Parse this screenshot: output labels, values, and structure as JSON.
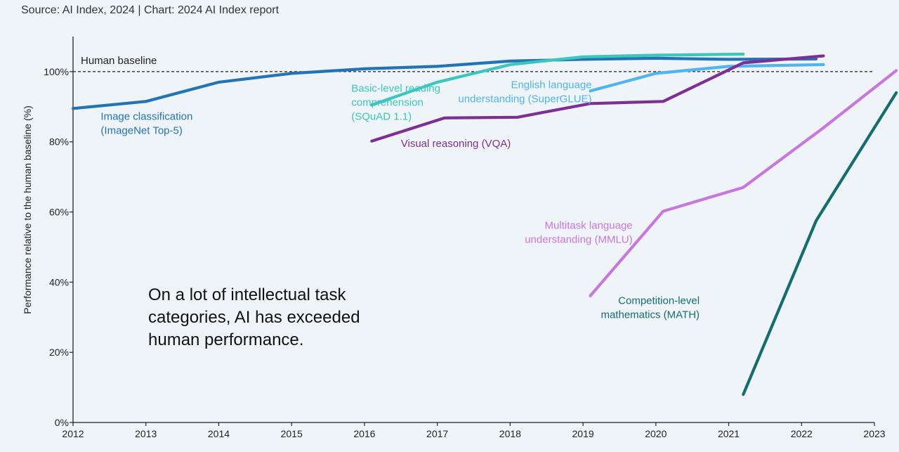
{
  "source": "Source: AI Index, 2024 | Chart: 2024 AI Index report",
  "annotation": "On a lot of intellectual task categories, AI has exceeded human performance.",
  "chart_data": {
    "type": "line",
    "ylabel": "Performance relative to the human baseline (%)",
    "xlim": [
      2012,
      2023
    ],
    "ylim": [
      0,
      110
    ],
    "x_ticks": [
      2012,
      2013,
      2014,
      2015,
      2016,
      2017,
      2018,
      2019,
      2020,
      2021,
      2022,
      2023
    ],
    "y_ticks": [
      0,
      20,
      40,
      60,
      80,
      100
    ],
    "y_tick_labels": [
      "0%",
      "20%",
      "40%",
      "60%",
      "80%",
      "100%"
    ],
    "baseline": {
      "label": "Human baseline",
      "value": 100
    },
    "grid": false,
    "series": [
      {
        "name": "Image classification (ImageNet Top-5)",
        "label_lines": [
          "Image classification",
          "(ImageNet Top-5)"
        ],
        "color": "#2474b5",
        "x": [
          2012,
          2013,
          2014,
          2015,
          2016,
          2017,
          2018,
          2019,
          2020,
          2021,
          2022.2
        ],
        "y": [
          89.5,
          91.5,
          97,
          99.5,
          100.8,
          101.5,
          103,
          103.5,
          103.8,
          103.5,
          103.6
        ]
      },
      {
        "name": "Basic-level reading comprehension (SQuAD 1.1)",
        "label_lines": [
          "Basic-level reading",
          "comprehension",
          "(SQuAD 1.1)"
        ],
        "color": "#3cc6be",
        "x": [
          2016.1,
          2017,
          2018,
          2019,
          2020,
          2021.2
        ],
        "y": [
          90.5,
          97,
          102,
          104.2,
          104.7,
          105
        ]
      },
      {
        "name": "English language understanding (SuperGLUE)",
        "label_lines": [
          "English language",
          "understanding (SuperGLUE)"
        ],
        "color": "#4fb4ef",
        "x": [
          2019.1,
          2020,
          2021,
          2022.3
        ],
        "y": [
          94.5,
          99.5,
          101.5,
          102
        ]
      },
      {
        "name": "Visual reasoning (VQA)",
        "label_lines": [
          "Visual reasoning (VQA)"
        ],
        "color": "#7d2f96",
        "x": [
          2016.1,
          2017.1,
          2018.1,
          2019.1,
          2020.1,
          2021.2,
          2022.3
        ],
        "y": [
          80.2,
          86.8,
          87,
          90.9,
          91.5,
          102.5,
          104.5
        ]
      },
      {
        "name": "Multitask language understanding (MMLU)",
        "label_lines": [
          "Multitask language",
          "understanding (MMLU)"
        ],
        "color": "#c877e0",
        "x": [
          2019.1,
          2020.1,
          2021.2,
          2022.3,
          2023.3
        ],
        "y": [
          36.1,
          60.2,
          67,
          84,
          100.3
        ]
      },
      {
        "name": "Competition-level mathematics (MATH)",
        "label_lines": [
          "Competition-level",
          "mathematics (MATH)"
        ],
        "color": "#146d6e",
        "x": [
          2021.2,
          2022.2,
          2023.3
        ],
        "y": [
          8,
          57.5,
          94
        ]
      }
    ]
  }
}
